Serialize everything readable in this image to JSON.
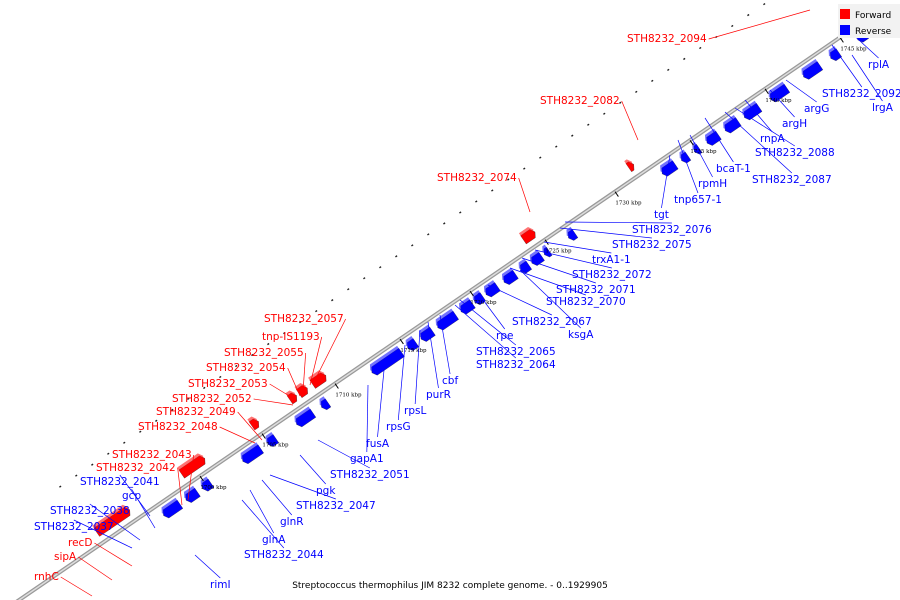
{
  "title": "Streptococcus thermophilus JIM 8232 complete genome. - 0..1929905",
  "legend": [
    {
      "label": "Forward",
      "color": "#ff0000"
    },
    {
      "label": "Reverse",
      "color": "#0000ff"
    }
  ],
  "colors": {
    "forward": "#ff0000",
    "reverse": "#0000ff",
    "backbone": "#888888"
  },
  "ticks": [
    "1700 kbp",
    "1705 kbp",
    "1710 kbp",
    "1715 kbp",
    "1720 kbp",
    "1725 kbp",
    "1730 kbp",
    "1735 kbp",
    "1740 kbp",
    "1745 kbp"
  ],
  "forward_labels": [
    "STH8232_2094",
    "STH8232_2082",
    "STH8232_2074",
    "STH8232_2057",
    "tnp-IS1193",
    "STH8232_2055",
    "STH8232_2054",
    "STH8232_2053",
    "STH8232_2052",
    "STH8232_2049",
    "STH8232_2048",
    "STH8232_2043",
    "STH8232_2042",
    "recD",
    "sipA",
    "rnhC"
  ],
  "reverse_labels": [
    "rplA",
    "STH8232_2092",
    "lrgA",
    "argG",
    "argH",
    "rnpA",
    "STH8232_2088",
    "bcaT-1",
    "STH8232_2087",
    "rpmH",
    "tnp657-1",
    "tgt",
    "STH8232_2076",
    "STH8232_2075",
    "trxA1-1",
    "STH8232_2072",
    "STH8232_2071",
    "STH8232_2070",
    "STH8232_2067",
    "ksgA",
    "rpe",
    "STH8232_2065",
    "STH8232_2064",
    "cbf",
    "purR",
    "rpsL",
    "rpsG",
    "fusA",
    "gapA1",
    "STH8232_2051",
    "pgk",
    "STH8232_2047",
    "glnR",
    "glnA",
    "STH8232_2044",
    "rimI",
    "STH8232_2041",
    "gcp",
    "STH8232_2038",
    "STH8232_2037"
  ]
}
